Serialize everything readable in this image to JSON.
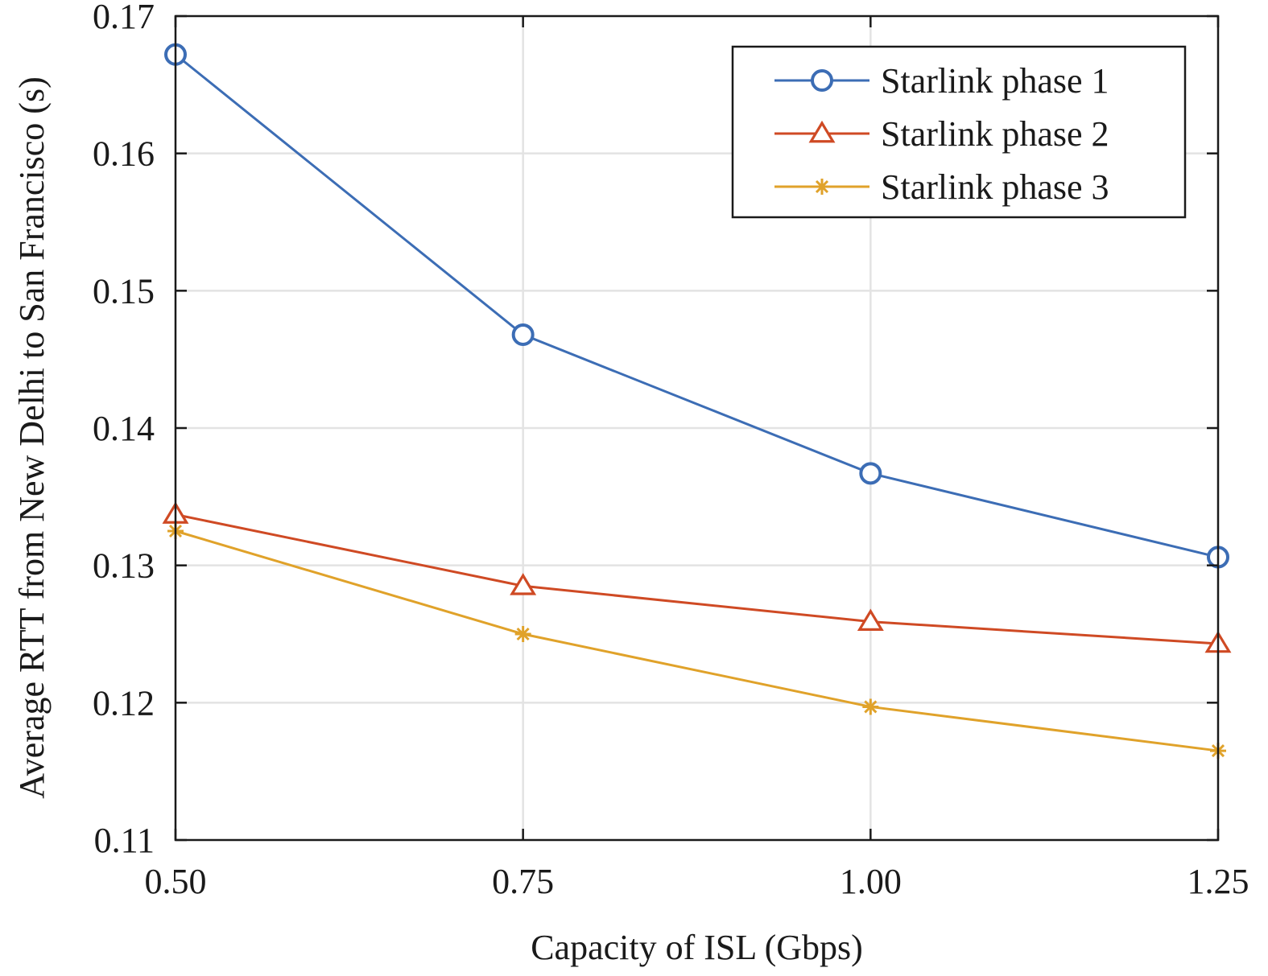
{
  "chart_data": {
    "type": "line",
    "x": [
      0.5,
      0.75,
      1.0,
      1.25
    ],
    "x_tick_labels": [
      "0.50",
      "0.75",
      "1.00",
      "1.25"
    ],
    "y_ticks": [
      0.11,
      0.12,
      0.13,
      0.14,
      0.15,
      0.16,
      0.17
    ],
    "y_tick_labels": [
      "0.11",
      "0.12",
      "0.13",
      "0.14",
      "0.15",
      "0.16",
      "0.17"
    ],
    "xlim": [
      0.5,
      1.25
    ],
    "ylim": [
      0.11,
      0.17
    ],
    "xlabel": "Capacity of ISL (Gbps)",
    "ylabel": "Average RTT from New Delhi to San Francisco (s)",
    "grid": true,
    "legend_position": "top-right",
    "series": [
      {
        "name": "Starlink phase 1",
        "color": "#3c6db5",
        "marker": "circle",
        "values": [
          0.1672,
          0.1468,
          0.1367,
          0.1306
        ]
      },
      {
        "name": "Starlink phase 2",
        "color": "#cf4a24",
        "marker": "triangle",
        "values": [
          0.1337,
          0.1285,
          0.1259,
          0.1243
        ]
      },
      {
        "name": "Starlink phase 3",
        "color": "#e0a22a",
        "marker": "asterisk",
        "values": [
          0.1325,
          0.125,
          0.1197,
          0.1165
        ]
      }
    ]
  }
}
